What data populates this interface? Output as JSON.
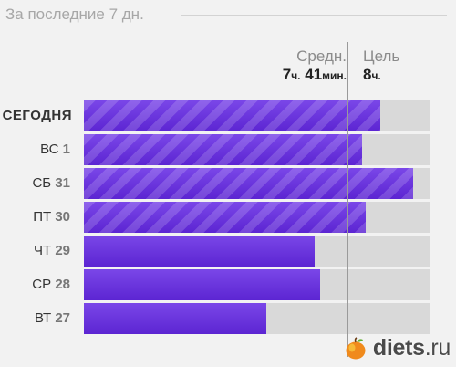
{
  "header": {
    "title": "За последние 7 дн."
  },
  "average": {
    "caption": "Средн.",
    "hours": "7",
    "hours_unit": "ч.",
    "minutes": "41",
    "minutes_unit": "мин."
  },
  "goal": {
    "caption": "Цель",
    "hours": "8",
    "hours_unit": "ч."
  },
  "rows": [
    {
      "day": "СЕГОДНЯ",
      "date": "",
      "progress": 0.855,
      "striped": true
    },
    {
      "day": "ВС",
      "date": "1",
      "progress": 0.803,
      "striped": true
    },
    {
      "day": "СБ",
      "date": "31",
      "progress": 0.95,
      "striped": true
    },
    {
      "day": "ПТ",
      "date": "30",
      "progress": 0.813,
      "striped": true
    },
    {
      "day": "ЧТ",
      "date": "29",
      "progress": 0.666,
      "striped": false
    },
    {
      "day": "СР",
      "date": "28",
      "progress": 0.682,
      "striped": false
    },
    {
      "day": "ВТ",
      "date": "27",
      "progress": 0.526,
      "striped": false
    }
  ],
  "watermark": {
    "name": "diets",
    "tld": ".ru"
  },
  "colors": {
    "accent": "#6a35dc",
    "track": "#d9d9d9",
    "background": "#f2f2f2"
  }
}
